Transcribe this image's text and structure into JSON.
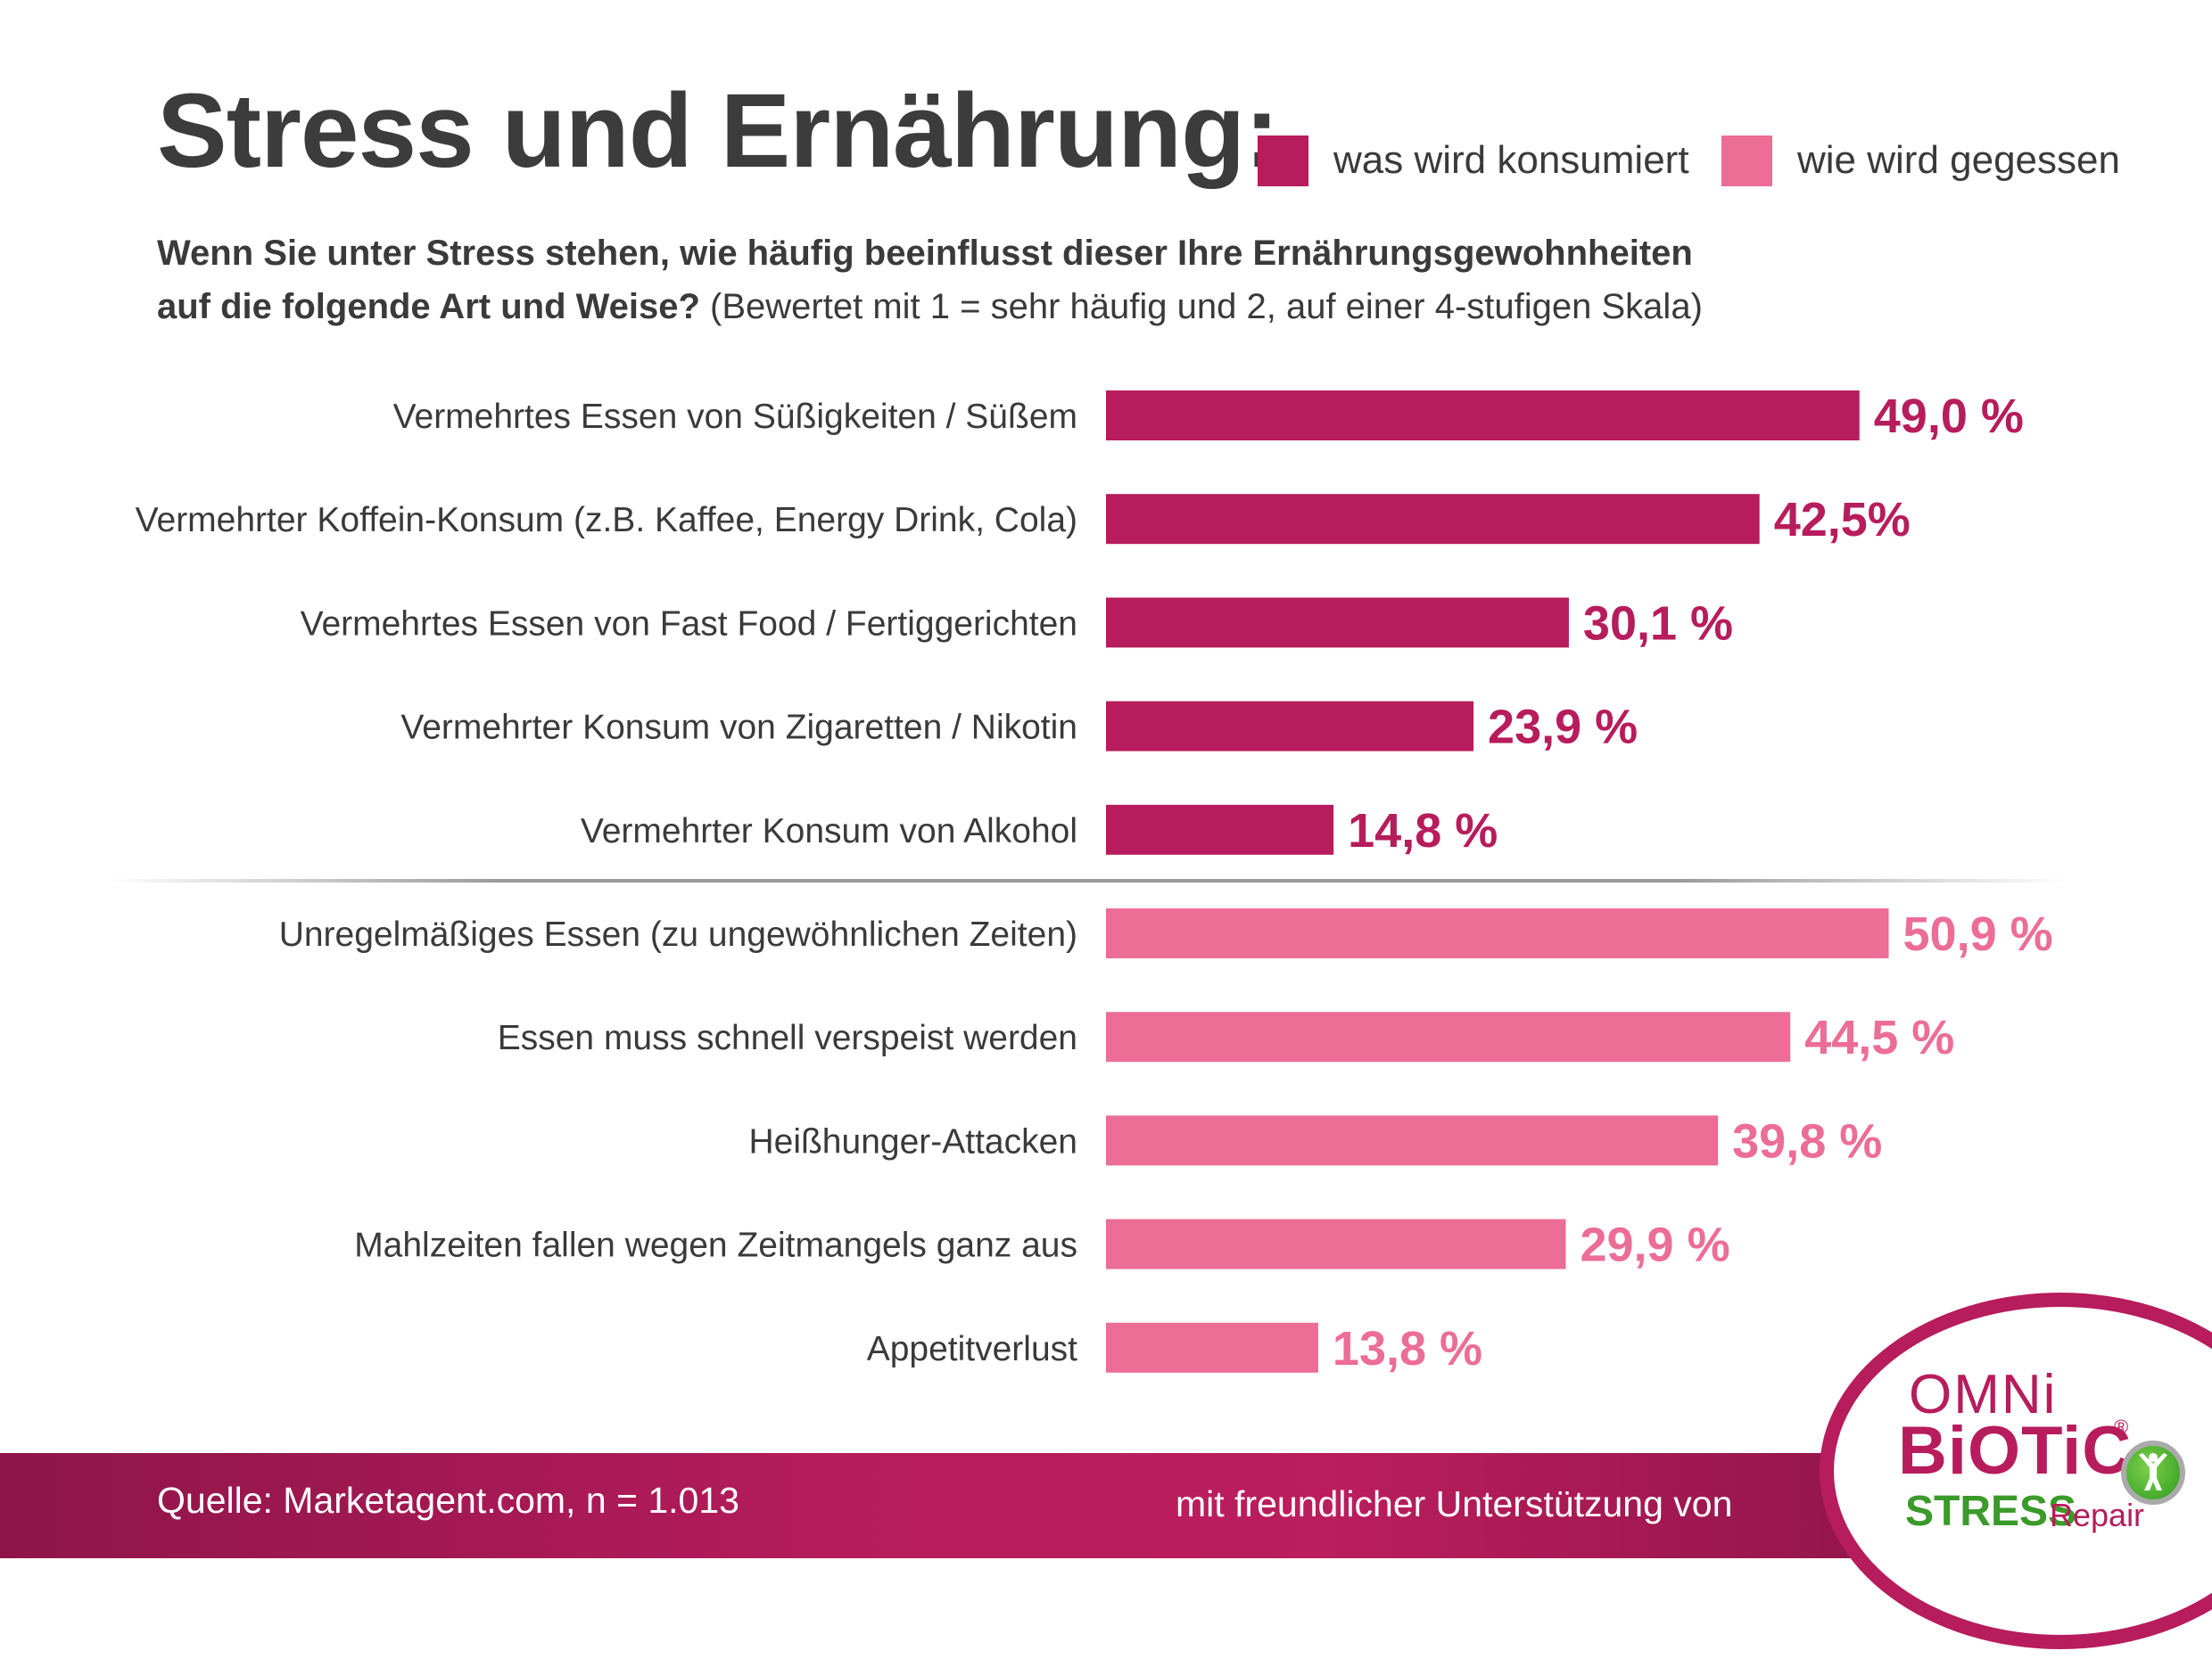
{
  "header": {
    "title": "Stress und Ernährung:",
    "subtitle_bold_line1": "Wenn Sie unter Stress stehen, wie häufig beeinflusst dieser Ihre Ernährungsgewohnheiten",
    "subtitle_bold_line2": "auf die folgende Art und Weise?",
    "subtitle_regular": " (Bewertet mit 1 = sehr häufig und 2, auf einer 4-stufigen Skala)"
  },
  "legend": [
    {
      "label": "was wird konsumiert",
      "color": "#b71c5c"
    },
    {
      "label": "wie wird gegessen",
      "color": "#ec6d96"
    }
  ],
  "footer": {
    "source": "Quelle: Marketagent.com, n = 1.013",
    "support": "mit freundlicher Unterstützung von"
  },
  "logo": {
    "line1": "OMNi",
    "line2": "BiOTiC",
    "registered": "®",
    "line3a": "STRESS",
    "line3b": "Repair",
    "badge_icon": "person-jumping-icon"
  },
  "chart_data": {
    "type": "bar",
    "orientation": "horizontal",
    "title": "Stress und Ernährung:",
    "xlabel": "",
    "ylabel": "",
    "xlim": [
      0,
      100
    ],
    "unit": "%",
    "grid": false,
    "legend_position": "top-right",
    "series": [
      {
        "name": "was wird konsumiert",
        "color": "#b71c5c",
        "categories": [
          "Vermehrtes Essen von Süßigkeiten / Süßem",
          "Vermehrter Koffein-Konsum (z.B. Kaffee, Energy Drink, Cola)",
          "Vermehrtes Essen von Fast Food / Fertiggerichten",
          "Vermehrter Konsum von Zigaretten / Nikotin",
          "Vermehrter Konsum von Alkohol"
        ],
        "values": [
          49.0,
          42.5,
          30.1,
          23.9,
          14.8
        ],
        "value_labels": [
          "49,0 %",
          "42,5%",
          "30,1 %",
          "23,9 %",
          "14,8 %"
        ]
      },
      {
        "name": "wie wird gegessen",
        "color": "#ec6d96",
        "categories": [
          "Unregelmäßiges Essen (zu ungewöhnlichen Zeiten)",
          "Essen muss schnell verspeist werden",
          "Heißhunger-Attacken",
          "Mahlzeiten fallen wegen Zeitmangels ganz aus",
          "Appetitverlust"
        ],
        "values": [
          50.9,
          44.5,
          39.8,
          29.9,
          13.8
        ],
        "value_labels": [
          "50,9 %",
          "44,5 %",
          "39,8 %",
          "29,9 %",
          "13,8 %"
        ]
      }
    ]
  }
}
